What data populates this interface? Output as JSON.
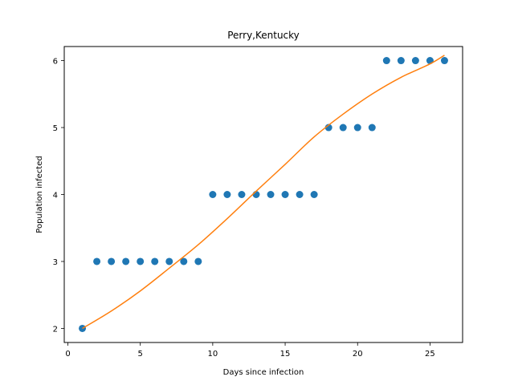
{
  "chart_data": {
    "type": "scatter",
    "title": "Perry,Kentucky",
    "xlabel": "Days since infection",
    "ylabel": "Population infected",
    "xlim": [
      -0.25,
      27.25
    ],
    "ylim": [
      1.79,
      6.21
    ],
    "xticks": [
      0,
      5,
      10,
      15,
      20,
      25
    ],
    "yticks": [
      2,
      3,
      4,
      5,
      6
    ],
    "grid": false,
    "series": [
      {
        "kind": "scatter",
        "color": "#1f77b4",
        "x": [
          1,
          2,
          3,
          4,
          5,
          6,
          7,
          8,
          9,
          10,
          11,
          12,
          13,
          14,
          15,
          16,
          17,
          18,
          19,
          20,
          21,
          22,
          23,
          24,
          25,
          26
        ],
        "y": [
          2,
          3,
          3,
          3,
          3,
          3,
          3,
          3,
          3,
          4,
          4,
          4,
          4,
          4,
          4,
          4,
          4,
          5,
          5,
          5,
          5,
          6,
          6,
          6,
          6,
          6
        ]
      },
      {
        "kind": "line",
        "color": "#ff7f0e",
        "x": [
          1,
          3,
          5,
          7,
          9,
          11,
          13,
          15,
          17,
          19,
          21,
          23,
          25,
          26
        ],
        "y": [
          2.0,
          2.26,
          2.56,
          2.9,
          3.25,
          3.64,
          4.05,
          4.45,
          4.86,
          5.2,
          5.5,
          5.75,
          5.95,
          6.08
        ]
      }
    ]
  }
}
